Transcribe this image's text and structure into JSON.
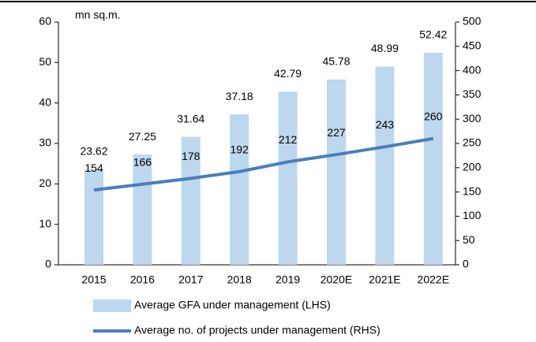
{
  "chart_data": {
    "type": "bar-line",
    "axis_label": "mn sq.m.",
    "categories": [
      "2015",
      "2016",
      "2017",
      "2018",
      "2019",
      "2020E",
      "2021E",
      "2022E"
    ],
    "series": [
      {
        "name": "Average GFA under management (LHS)",
        "type": "bar",
        "color": "#bdd7ee",
        "values": [
          23.62,
          27.25,
          31.64,
          37.18,
          42.79,
          45.78,
          48.99,
          52.42
        ]
      },
      {
        "name": "Average no. of projects under management (RHS)",
        "type": "line",
        "axis": "y2",
        "color": "#4a7ebb",
        "values": [
          154,
          166,
          178,
          192,
          212,
          227,
          243,
          260
        ]
      }
    ],
    "ylim": [
      0,
      60
    ],
    "yticks": [
      0,
      10,
      20,
      30,
      40,
      50,
      60
    ],
    "y2lim": [
      0,
      500
    ],
    "y2ticks": [
      0,
      50,
      100,
      150,
      200,
      250,
      300,
      350,
      400,
      450,
      500
    ]
  }
}
